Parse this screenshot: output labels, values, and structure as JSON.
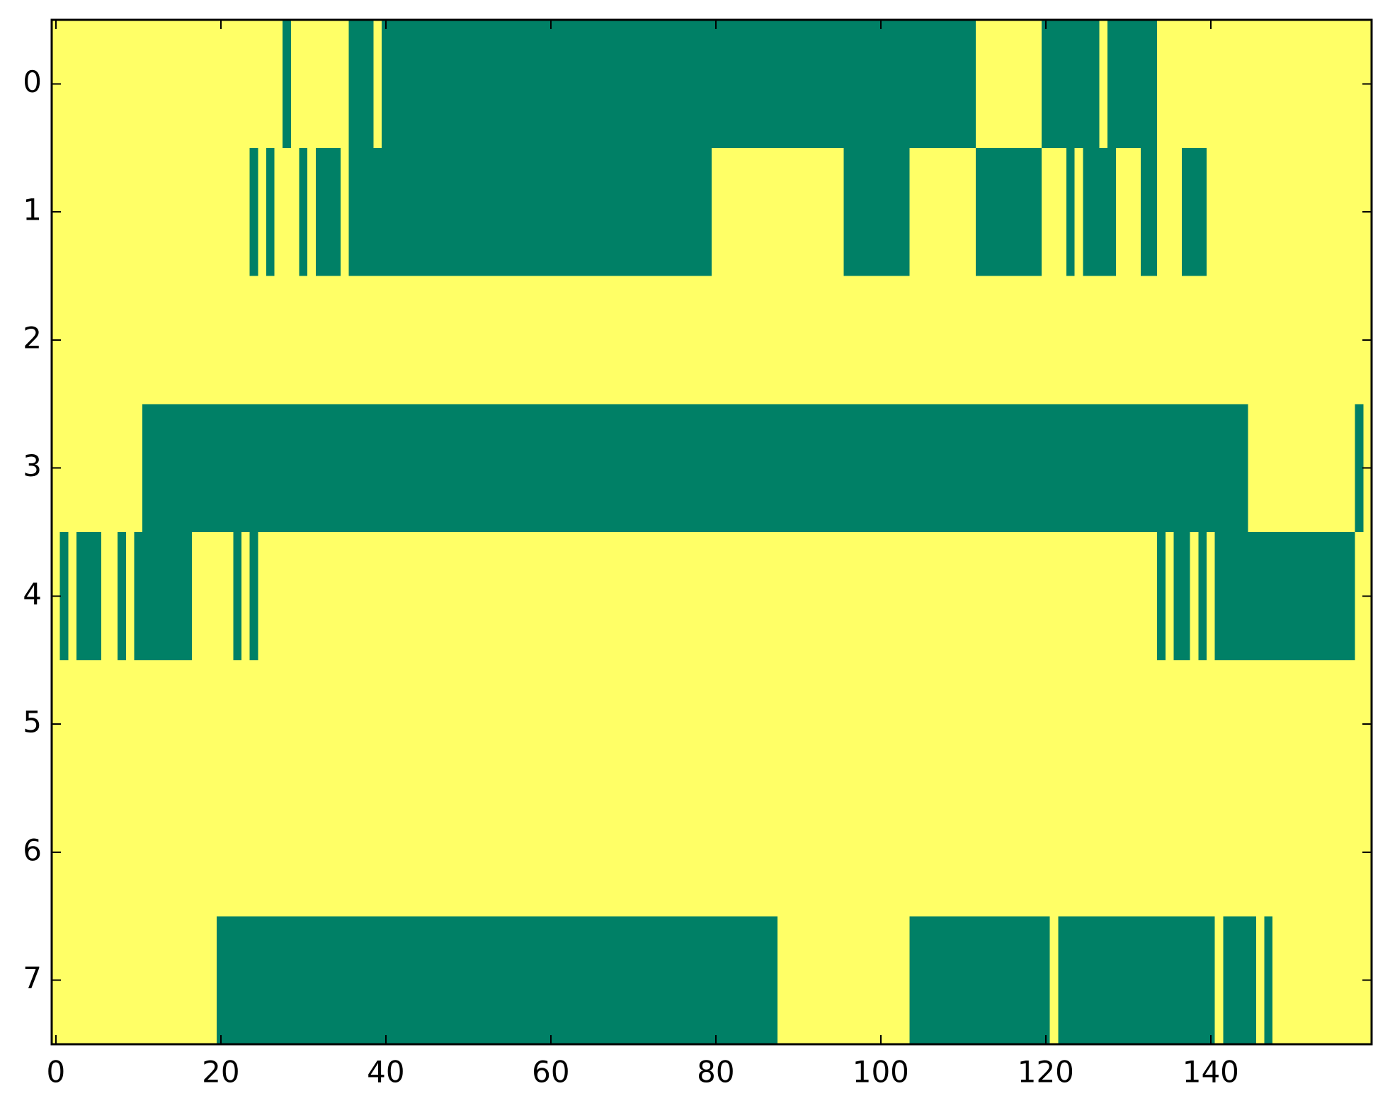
{
  "chart_data": {
    "type": "heatmap",
    "colors": [
      "#008066",
      "#ffff66"
    ],
    "z": [
      [
        1,
        1,
        1,
        1,
        1,
        1,
        1,
        1,
        1,
        1,
        1,
        1,
        1,
        1,
        1,
        1,
        1,
        1,
        1,
        1,
        1,
        1,
        1,
        1,
        1,
        1,
        1,
        1,
        0,
        1,
        1,
        1,
        1,
        1,
        1,
        1,
        0,
        0,
        0,
        1,
        0,
        0,
        0,
        0,
        0,
        0,
        0,
        0,
        0,
        0,
        0,
        0,
        0,
        0,
        0,
        0,
        0,
        0,
        0,
        0,
        0,
        0,
        0,
        0,
        0,
        0,
        0,
        0,
        0,
        0,
        0,
        0,
        0,
        0,
        0,
        0,
        0,
        0,
        0,
        0,
        0,
        0,
        0,
        0,
        0,
        0,
        0,
        0,
        0,
        0,
        0,
        0,
        0,
        0,
        0,
        0,
        0,
        0,
        0,
        0,
        0,
        0,
        0,
        0,
        0,
        0,
        0,
        0,
        0,
        0,
        0,
        0,
        1,
        1,
        1,
        1,
        1,
        1,
        1,
        1,
        0,
        0,
        0,
        0,
        0,
        0,
        0,
        1,
        0,
        0,
        0,
        0,
        0,
        0,
        1,
        1,
        1,
        1,
        1,
        1,
        1,
        1,
        1,
        1,
        1,
        1,
        1,
        1,
        1,
        1,
        1,
        1,
        1,
        1,
        1,
        1,
        1,
        1,
        1,
        1
      ],
      [
        1,
        1,
        1,
        1,
        1,
        1,
        1,
        1,
        1,
        1,
        1,
        1,
        1,
        1,
        1,
        1,
        1,
        1,
        1,
        1,
        1,
        1,
        1,
        1,
        0,
        1,
        0,
        1,
        1,
        1,
        0,
        1,
        0,
        0,
        0,
        1,
        0,
        0,
        0,
        0,
        0,
        0,
        0,
        0,
        0,
        0,
        0,
        0,
        0,
        0,
        0,
        0,
        0,
        0,
        0,
        0,
        0,
        0,
        0,
        0,
        0,
        0,
        0,
        0,
        0,
        0,
        0,
        0,
        0,
        0,
        0,
        0,
        0,
        0,
        0,
        0,
        0,
        0,
        0,
        0,
        1,
        1,
        1,
        1,
        1,
        1,
        1,
        1,
        1,
        1,
        1,
        1,
        1,
        1,
        1,
        1,
        0,
        0,
        0,
        0,
        0,
        0,
        0,
        0,
        1,
        1,
        1,
        1,
        1,
        1,
        1,
        1,
        0,
        0,
        0,
        0,
        0,
        0,
        0,
        0,
        1,
        1,
        1,
        0,
        1,
        0,
        0,
        0,
        0,
        1,
        1,
        1,
        0,
        0,
        1,
        1,
        1,
        0,
        0,
        0,
        1,
        1,
        1,
        1,
        1,
        1,
        1,
        1,
        1,
        1,
        1,
        1,
        1,
        1,
        1,
        1,
        1,
        1,
        1,
        1
      ],
      [
        1,
        1,
        1,
        1,
        1,
        1,
        1,
        1,
        1,
        1,
        1,
        1,
        1,
        1,
        1,
        1,
        1,
        1,
        1,
        1,
        1,
        1,
        1,
        1,
        1,
        1,
        1,
        1,
        1,
        1,
        1,
        1,
        1,
        1,
        1,
        1,
        1,
        1,
        1,
        1,
        1,
        1,
        1,
        1,
        1,
        1,
        1,
        1,
        1,
        1,
        1,
        1,
        1,
        1,
        1,
        1,
        1,
        1,
        1,
        1,
        1,
        1,
        1,
        1,
        1,
        1,
        1,
        1,
        1,
        1,
        1,
        1,
        1,
        1,
        1,
        1,
        1,
        1,
        1,
        1,
        1,
        1,
        1,
        1,
        1,
        1,
        1,
        1,
        1,
        1,
        1,
        1,
        1,
        1,
        1,
        1,
        1,
        1,
        1,
        1,
        1,
        1,
        1,
        1,
        1,
        1,
        1,
        1,
        1,
        1,
        1,
        1,
        1,
        1,
        1,
        1,
        1,
        1,
        1,
        1,
        1,
        1,
        1,
        1,
        1,
        1,
        1,
        1,
        1,
        1,
        1,
        1,
        1,
        1,
        1,
        1,
        1,
        1,
        1,
        1,
        1,
        1,
        1,
        1,
        1,
        1,
        1,
        1,
        1,
        1,
        1,
        1,
        1,
        1,
        1,
        1,
        1,
        1,
        1,
        1
      ],
      [
        1,
        1,
        1,
        1,
        1,
        1,
        1,
        1,
        1,
        1,
        1,
        0,
        0,
        0,
        0,
        0,
        0,
        0,
        0,
        0,
        0,
        0,
        0,
        0,
        0,
        0,
        0,
        0,
        0,
        0,
        0,
        0,
        0,
        0,
        0,
        0,
        0,
        0,
        0,
        0,
        0,
        0,
        0,
        0,
        0,
        0,
        0,
        0,
        0,
        0,
        0,
        0,
        0,
        0,
        0,
        0,
        0,
        0,
        0,
        0,
        0,
        0,
        0,
        0,
        0,
        0,
        0,
        0,
        0,
        0,
        0,
        0,
        0,
        0,
        0,
        0,
        0,
        0,
        0,
        0,
        0,
        0,
        0,
        0,
        0,
        0,
        0,
        0,
        0,
        0,
        0,
        0,
        0,
        0,
        0,
        0,
        0,
        0,
        0,
        0,
        0,
        0,
        0,
        0,
        0,
        0,
        0,
        0,
        0,
        0,
        0,
        0,
        0,
        0,
        0,
        0,
        0,
        0,
        0,
        0,
        0,
        0,
        0,
        0,
        0,
        0,
        0,
        0,
        0,
        0,
        0,
        0,
        0,
        0,
        0,
        0,
        0,
        0,
        0,
        0,
        0,
        0,
        0,
        0,
        0,
        1,
        1,
        1,
        1,
        1,
        1,
        1,
        1,
        1,
        1,
        1,
        1,
        1,
        0,
        1
      ],
      [
        1,
        0,
        1,
        0,
        0,
        0,
        1,
        1,
        0,
        1,
        0,
        0,
        0,
        0,
        0,
        0,
        0,
        1,
        1,
        1,
        1,
        1,
        0,
        1,
        0,
        1,
        1,
        1,
        1,
        1,
        1,
        1,
        1,
        1,
        1,
        1,
        1,
        1,
        1,
        1,
        1,
        1,
        1,
        1,
        1,
        1,
        1,
        1,
        1,
        1,
        1,
        1,
        1,
        1,
        1,
        1,
        1,
        1,
        1,
        1,
        1,
        1,
        1,
        1,
        1,
        1,
        1,
        1,
        1,
        1,
        1,
        1,
        1,
        1,
        1,
        1,
        1,
        1,
        1,
        1,
        1,
        1,
        1,
        1,
        1,
        1,
        1,
        1,
        1,
        1,
        1,
        1,
        1,
        1,
        1,
        1,
        1,
        1,
        1,
        1,
        1,
        1,
        1,
        1,
        1,
        1,
        1,
        1,
        1,
        1,
        1,
        1,
        1,
        1,
        1,
        1,
        1,
        1,
        1,
        1,
        1,
        1,
        1,
        1,
        1,
        1,
        1,
        1,
        1,
        1,
        1,
        1,
        1,
        1,
        0,
        1,
        0,
        0,
        1,
        0,
        1,
        0,
        0,
        0,
        0,
        0,
        0,
        0,
        0,
        0,
        0,
        0,
        0,
        0,
        0,
        0,
        0,
        0,
        1,
        1
      ],
      [
        1,
        1,
        1,
        1,
        1,
        1,
        1,
        1,
        1,
        1,
        1,
        1,
        1,
        1,
        1,
        1,
        1,
        1,
        1,
        1,
        1,
        1,
        1,
        1,
        1,
        1,
        1,
        1,
        1,
        1,
        1,
        1,
        1,
        1,
        1,
        1,
        1,
        1,
        1,
        1,
        1,
        1,
        1,
        1,
        1,
        1,
        1,
        1,
        1,
        1,
        1,
        1,
        1,
        1,
        1,
        1,
        1,
        1,
        1,
        1,
        1,
        1,
        1,
        1,
        1,
        1,
        1,
        1,
        1,
        1,
        1,
        1,
        1,
        1,
        1,
        1,
        1,
        1,
        1,
        1,
        1,
        1,
        1,
        1,
        1,
        1,
        1,
        1,
        1,
        1,
        1,
        1,
        1,
        1,
        1,
        1,
        1,
        1,
        1,
        1,
        1,
        1,
        1,
        1,
        1,
        1,
        1,
        1,
        1,
        1,
        1,
        1,
        1,
        1,
        1,
        1,
        1,
        1,
        1,
        1,
        1,
        1,
        1,
        1,
        1,
        1,
        1,
        1,
        1,
        1,
        1,
        1,
        1,
        1,
        1,
        1,
        1,
        1,
        1,
        1,
        1,
        1,
        1,
        1,
        1,
        1,
        1,
        1,
        1,
        1,
        1,
        1,
        1,
        1,
        1,
        1,
        1,
        1,
        1,
        1
      ],
      [
        1,
        1,
        1,
        1,
        1,
        1,
        1,
        1,
        1,
        1,
        1,
        1,
        1,
        1,
        1,
        1,
        1,
        1,
        1,
        1,
        1,
        1,
        1,
        1,
        1,
        1,
        1,
        1,
        1,
        1,
        1,
        1,
        1,
        1,
        1,
        1,
        1,
        1,
        1,
        1,
        1,
        1,
        1,
        1,
        1,
        1,
        1,
        1,
        1,
        1,
        1,
        1,
        1,
        1,
        1,
        1,
        1,
        1,
        1,
        1,
        1,
        1,
        1,
        1,
        1,
        1,
        1,
        1,
        1,
        1,
        1,
        1,
        1,
        1,
        1,
        1,
        1,
        1,
        1,
        1,
        1,
        1,
        1,
        1,
        1,
        1,
        1,
        1,
        1,
        1,
        1,
        1,
        1,
        1,
        1,
        1,
        1,
        1,
        1,
        1,
        1,
        1,
        1,
        1,
        1,
        1,
        1,
        1,
        1,
        1,
        1,
        1,
        1,
        1,
        1,
        1,
        1,
        1,
        1,
        1,
        1,
        1,
        1,
        1,
        1,
        1,
        1,
        1,
        1,
        1,
        1,
        1,
        1,
        1,
        1,
        1,
        1,
        1,
        1,
        1,
        1,
        1,
        1,
        1,
        1,
        1,
        1,
        1,
        1,
        1,
        1,
        1,
        1,
        1,
        1,
        1,
        1,
        1,
        1,
        1
      ],
      [
        1,
        1,
        1,
        1,
        1,
        1,
        1,
        1,
        1,
        1,
        1,
        1,
        1,
        1,
        1,
        1,
        1,
        1,
        1,
        1,
        0,
        0,
        0,
        0,
        0,
        0,
        0,
        0,
        0,
        0,
        0,
        0,
        0,
        0,
        0,
        0,
        0,
        0,
        0,
        0,
        0,
        0,
        0,
        0,
        0,
        0,
        0,
        0,
        0,
        0,
        0,
        0,
        0,
        0,
        0,
        0,
        0,
        0,
        0,
        0,
        0,
        0,
        0,
        0,
        0,
        0,
        0,
        0,
        0,
        0,
        0,
        0,
        0,
        0,
        0,
        0,
        0,
        0,
        0,
        0,
        0,
        0,
        0,
        0,
        0,
        0,
        0,
        0,
        1,
        1,
        1,
        1,
        1,
        1,
        1,
        1,
        1,
        1,
        1,
        1,
        1,
        1,
        1,
        1,
        0,
        0,
        0,
        0,
        0,
        0,
        0,
        0,
        0,
        0,
        0,
        0,
        0,
        0,
        0,
        0,
        0,
        1,
        0,
        0,
        0,
        0,
        0,
        0,
        0,
        0,
        0,
        0,
        0,
        0,
        0,
        0,
        0,
        0,
        0,
        0,
        0,
        1,
        0,
        0,
        0,
        0,
        1,
        0,
        1,
        1,
        1,
        1,
        1,
        1,
        1,
        1,
        1,
        1,
        1,
        1
      ]
    ],
    "xlim": [
      -0.5,
      159.5
    ],
    "ylim": [
      7.5,
      -0.5
    ],
    "xticks": [
      0,
      20,
      40,
      60,
      80,
      100,
      120,
      140
    ],
    "yticks": [
      0,
      1,
      2,
      3,
      4,
      5,
      6,
      7
    ]
  }
}
